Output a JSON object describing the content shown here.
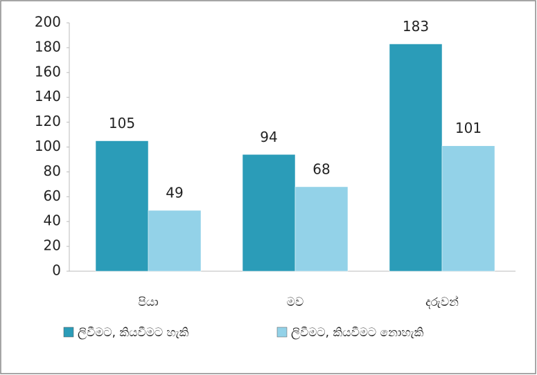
{
  "chart_data": {
    "type": "bar",
    "categories": [
      "පියා",
      "මව",
      "දරුවන්"
    ],
    "series": [
      {
        "name": "ලිවීමට, කියවීමට හැකි",
        "color": "#2b9cb8",
        "values": [
          105,
          94,
          183
        ]
      },
      {
        "name": "ලිවීමට, කියවීමට නොහැකි",
        "color": "#93d2e8",
        "values": [
          49,
          68,
          101
        ]
      }
    ],
    "ylim": [
      0,
      200
    ],
    "yticks": [
      0,
      20,
      40,
      60,
      80,
      100,
      120,
      140,
      160,
      180,
      200
    ],
    "grid": false,
    "legend": "bottom"
  }
}
